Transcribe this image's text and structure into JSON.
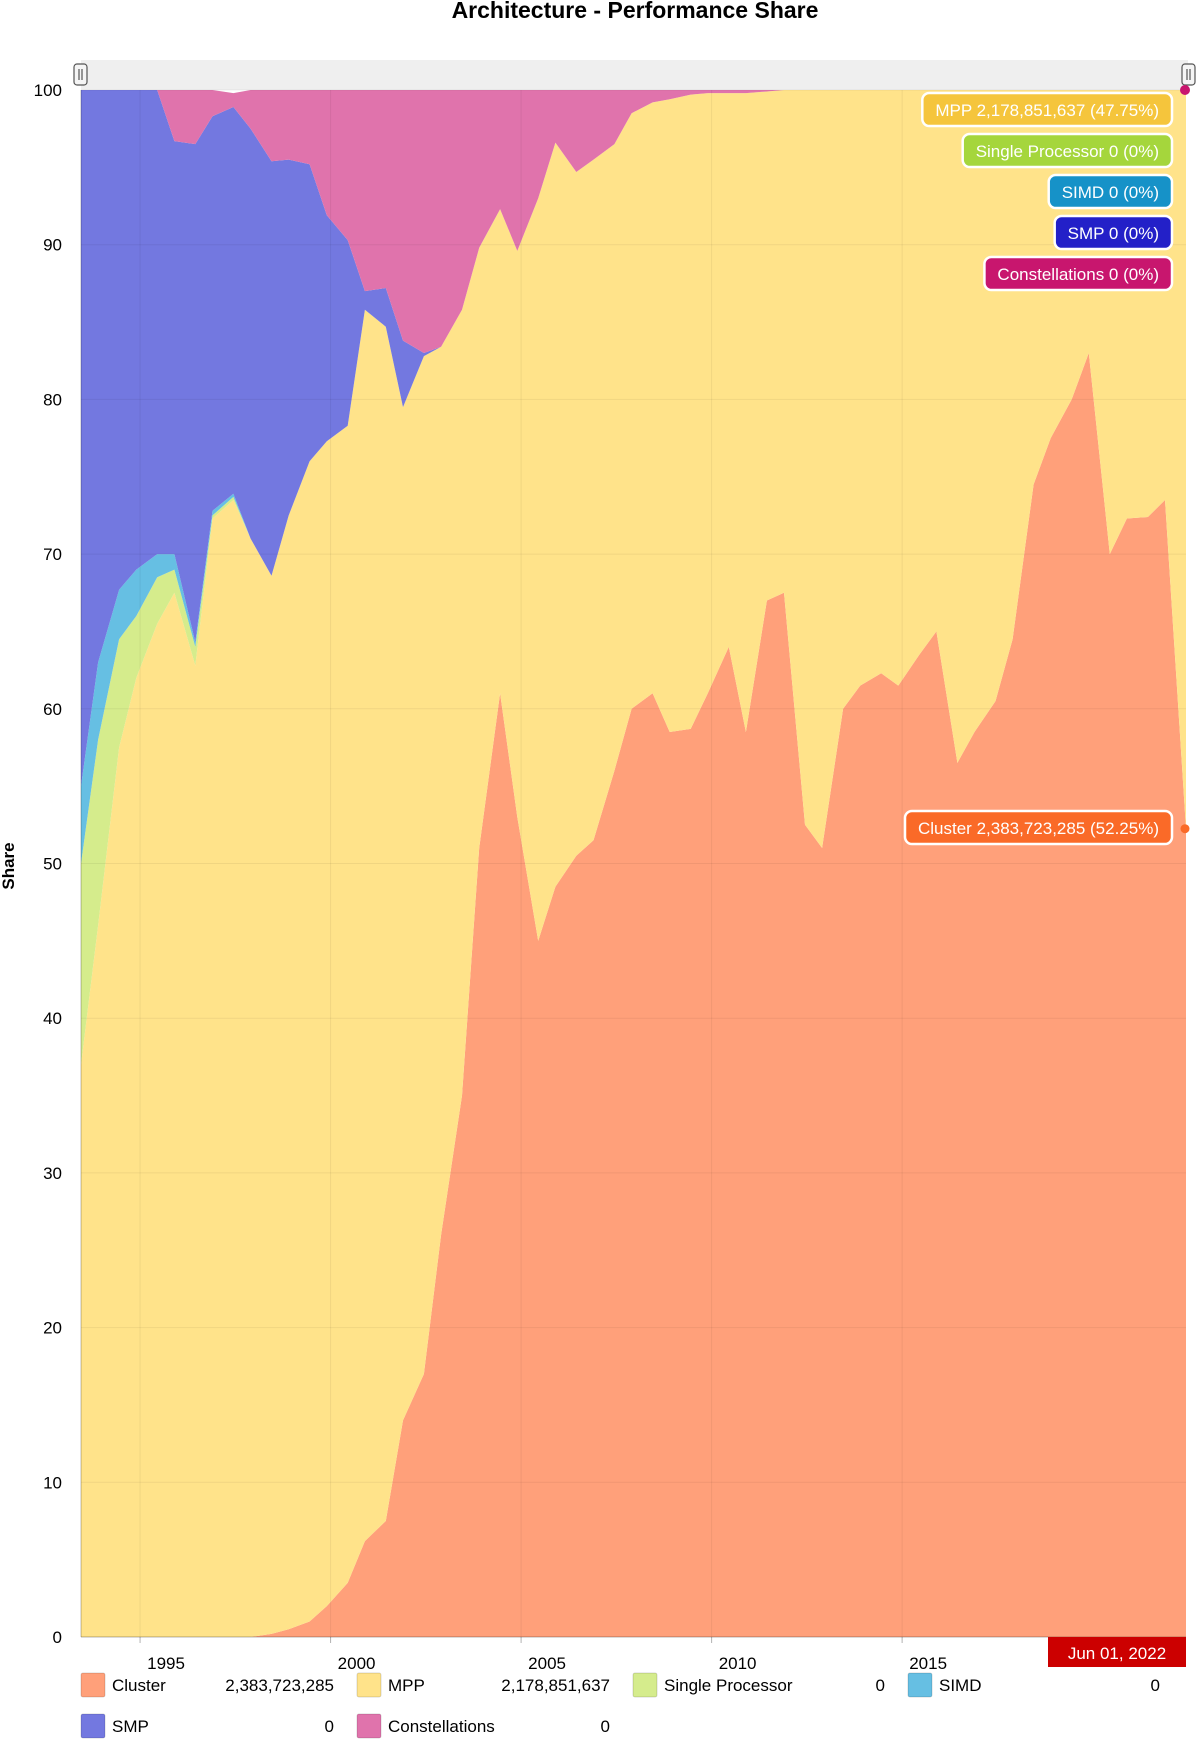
{
  "chart_data": {
    "type": "area",
    "stacked": "percent",
    "title": "Architecture - Performance Share",
    "ylabel": "Share",
    "ylim": [
      0,
      100
    ],
    "yticks": [
      0,
      10,
      20,
      30,
      40,
      50,
      60,
      70,
      80,
      90,
      100
    ],
    "xticks": [
      1995,
      2000,
      2005,
      2010,
      2015
    ],
    "xlim": [
      1993.45,
      2022.45
    ],
    "grid": true,
    "x": [
      1993.45,
      1993.9,
      1994.45,
      1994.9,
      1995.45,
      1995.9,
      1996.45,
      1996.9,
      1997.45,
      1997.9,
      1998.45,
      1998.9,
      1999.45,
      1999.9,
      2000.45,
      2000.9,
      2001.45,
      2001.9,
      2002.45,
      2002.9,
      2003.45,
      2003.9,
      2004.45,
      2004.9,
      2005.45,
      2005.9,
      2006.45,
      2006.9,
      2007.45,
      2007.9,
      2008.45,
      2008.9,
      2009.45,
      2009.9,
      2010.45,
      2010.9,
      2011.45,
      2011.9,
      2012.45,
      2012.9,
      2013.45,
      2013.9,
      2014.45,
      2014.9,
      2015.45,
      2015.9,
      2016.45,
      2016.9,
      2017.45,
      2017.9,
      2018.45,
      2018.9,
      2019.45,
      2019.9,
      2020.45,
      2020.9,
      2021.45,
      2021.9,
      2022.45
    ],
    "series": [
      {
        "name": "Cluster",
        "color": "#ffa07a",
        "values": [
          0,
          0,
          0,
          0,
          0,
          0,
          0,
          0,
          0,
          0,
          0.2,
          0.5,
          1.0,
          2.0,
          3.5,
          6.2,
          7.5,
          14,
          17,
          26,
          35,
          51,
          61,
          53,
          45,
          48.5,
          50.5,
          51.5,
          56,
          60,
          61,
          58.5,
          58.7,
          61,
          64,
          58.5,
          67,
          67.5,
          52.5,
          51,
          60,
          61.5,
          62.3,
          61.5,
          63.5,
          65,
          56.5,
          58.5,
          60.5,
          64.5,
          74.5,
          77.5,
          80,
          83,
          70,
          72.3,
          72.4,
          73.5,
          52.25
        ]
      },
      {
        "name": "MPP",
        "color": "#ffe38a",
        "values": [
          37,
          46,
          57.5,
          62,
          65.5,
          67.5,
          62.8,
          72.3,
          73.5,
          71,
          68.4,
          72,
          75,
          75.3,
          74.8,
          79.6,
          77.2,
          65.5,
          65.8,
          57.4,
          50.8,
          38.8,
          31.3,
          36.6,
          48,
          48.1,
          44.2,
          44,
          40.5,
          38.5,
          38.2,
          40.9,
          41,
          38.8,
          35.8,
          41.3,
          32.9,
          32.5,
          47.5,
          49,
          40,
          38.5,
          37.7,
          38.5,
          36.5,
          35,
          43.5,
          41.5,
          39.5,
          35.5,
          25.5,
          22.5,
          20,
          17,
          30,
          27.7,
          27.6,
          26.5,
          47.75
        ]
      },
      {
        "name": "Single Processor",
        "color": "#d5ec8c",
        "values": [
          13,
          12,
          7,
          4,
          3,
          1.5,
          1.2,
          0.2,
          0.2,
          0,
          0,
          0,
          0,
          0,
          0,
          0,
          0,
          0,
          0,
          0,
          0,
          0,
          0,
          0,
          0,
          0,
          0,
          0,
          0,
          0,
          0,
          0,
          0,
          0,
          0,
          0,
          0,
          0,
          0,
          0,
          0,
          0,
          0,
          0,
          0,
          0,
          0,
          0,
          0,
          0,
          0,
          0,
          0,
          0,
          0,
          0,
          0,
          0,
          0
        ]
      },
      {
        "name": "SIMD",
        "color": "#66bfe3",
        "values": [
          5,
          5,
          3.2,
          3,
          1.5,
          1,
          0.3,
          0.3,
          0.2,
          0,
          0,
          0,
          0,
          0,
          0,
          0,
          0,
          0,
          0,
          0,
          0,
          0,
          0,
          0,
          0,
          0,
          0,
          0,
          0,
          0,
          0,
          0,
          0,
          0,
          0,
          0,
          0,
          0,
          0,
          0,
          0,
          0,
          0,
          0,
          0,
          0,
          0,
          0,
          0,
          0,
          0,
          0,
          0,
          0,
          0,
          0,
          0,
          0,
          0
        ]
      },
      {
        "name": "SMP",
        "color": "#7378e0",
        "values": [
          45,
          37,
          32.3,
          31,
          30,
          26.7,
          32.2,
          25.5,
          25,
          26.5,
          26.8,
          23,
          19.2,
          14.6,
          12,
          1.2,
          2.5,
          4.3,
          0.2,
          0,
          0,
          0,
          0,
          0,
          0,
          0,
          0,
          0,
          0,
          0,
          0,
          0,
          0,
          0,
          0,
          0,
          0,
          0,
          0,
          0,
          0,
          0,
          0,
          0,
          0,
          0,
          0,
          0,
          0,
          0,
          0,
          0,
          0,
          0,
          0,
          0,
          0,
          0,
          0
        ]
      },
      {
        "name": "Constellations",
        "color": "#e073ac",
        "values": [
          0,
          0,
          0,
          0,
          0,
          3.3,
          3.5,
          1.7,
          0.9,
          2.5,
          4.6,
          4.5,
          4.8,
          8.1,
          9.7,
          13,
          12.8,
          16.2,
          17,
          16.6,
          14.2,
          10.2,
          7.7,
          10.4,
          7,
          3.4,
          5.3,
          4.5,
          3.5,
          1.5,
          0.8,
          0.6,
          0.3,
          0.2,
          0.2,
          0.2,
          0.1,
          0,
          0,
          0,
          0,
          0,
          0,
          0,
          0,
          0,
          0,
          0,
          0,
          0,
          0,
          0,
          0,
          0,
          0,
          0,
          0,
          0,
          0
        ]
      }
    ],
    "tooltips": [
      {
        "text": "MPP 2,178,851,637 (47.75%)",
        "color": "#f5c53c",
        "text_color": "#ffffff"
      },
      {
        "text": "Single Processor 0 (0%)",
        "color": "#a5d63c",
        "text_color": "#ffffff"
      },
      {
        "text": "SIMD 0 (0%)",
        "color": "#1692c8",
        "text_color": "#ffffff"
      },
      {
        "text": "SMP 0 (0%)",
        "color": "#2320c8",
        "text_color": "#ffffff"
      },
      {
        "text": "Constellations 0 (0%)",
        "color": "#c8166e",
        "text_color": "#ffffff"
      },
      {
        "text": "Cluster 2,383,723,285 (52.25%)",
        "color": "#fa6a28",
        "text_color": "#ffffff"
      }
    ],
    "cursor_date": "Jun 01, 2022",
    "cursor_color": "#cc0000",
    "legend": {
      "placement": "bottom",
      "items": [
        {
          "name": "Cluster",
          "value": "2,383,723,285",
          "color": "#ffa07a"
        },
        {
          "name": "MPP",
          "value": "2,178,851,637",
          "color": "#ffe38a"
        },
        {
          "name": "Single Processor",
          "value": "0",
          "color": "#d5ec8c"
        },
        {
          "name": "SIMD",
          "value": "0",
          "color": "#66bfe3"
        },
        {
          "name": "SMP",
          "value": "0",
          "color": "#7378e0"
        },
        {
          "name": "Constellations",
          "value": "0",
          "color": "#e073ac"
        }
      ]
    }
  }
}
